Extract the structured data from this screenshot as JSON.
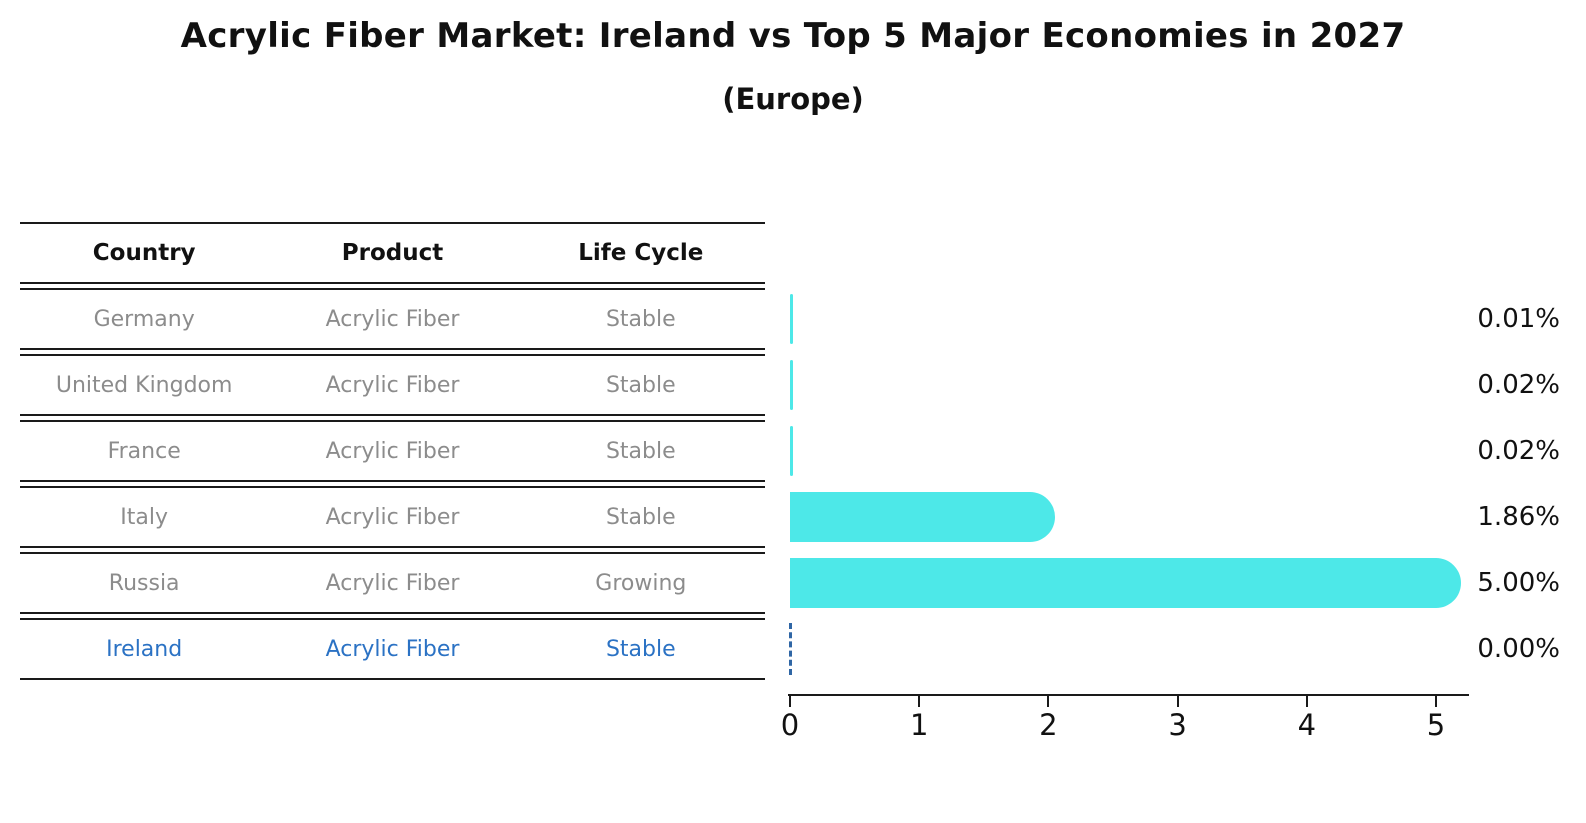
{
  "header": {
    "title": "Acrylic Fiber Market: Ireland vs Top 5 Major Economies in 2027",
    "subtitle": "(Europe)"
  },
  "table": {
    "headers": [
      "Country",
      "Product",
      "Life Cycle"
    ],
    "rows": [
      {
        "country": "Germany",
        "product": "Acrylic Fiber",
        "life_cycle": "Stable",
        "highlight": false
      },
      {
        "country": "United Kingdom",
        "product": "Acrylic Fiber",
        "life_cycle": "Stable",
        "highlight": false
      },
      {
        "country": "France",
        "product": "Acrylic Fiber",
        "life_cycle": "Stable",
        "highlight": false
      },
      {
        "country": "Italy",
        "product": "Acrylic Fiber",
        "life_cycle": "Stable",
        "highlight": false
      },
      {
        "country": "Russia",
        "product": "Acrylic Fiber",
        "life_cycle": "Growing",
        "highlight": false
      },
      {
        "country": "Ireland",
        "product": "Acrylic Fiber",
        "life_cycle": "Stable",
        "highlight": true
      }
    ]
  },
  "chart_data": {
    "type": "bar",
    "orientation": "horizontal",
    "title": "Acrylic Fiber Market: Ireland vs Top 5 Major Economies in 2027",
    "subtitle": "(Europe)",
    "categories": [
      "Germany",
      "United Kingdom",
      "France",
      "Italy",
      "Russia",
      "Ireland"
    ],
    "values": [
      0.01,
      0.02,
      0.02,
      1.86,
      5.0,
      0.0
    ],
    "value_labels": [
      "0.01%",
      "0.02%",
      "0.02%",
      "1.86%",
      "5.00%",
      "0.00%"
    ],
    "xlim": [
      0,
      5.25
    ],
    "xticks": [
      "0",
      "1",
      "2",
      "3",
      "4",
      "5"
    ],
    "grid": false,
    "legend": "none",
    "bar_style": "rounded-right-cap",
    "zero_value_marker": "dashed-line-at-zero"
  },
  "colors": {
    "bar": "#4DE8E8",
    "highlight_text": "#2B72C4",
    "muted_text": "#8C8C8C",
    "heading_text": "#111111",
    "line": "#1A1A1A",
    "zero_marker": "#2F66A5"
  }
}
